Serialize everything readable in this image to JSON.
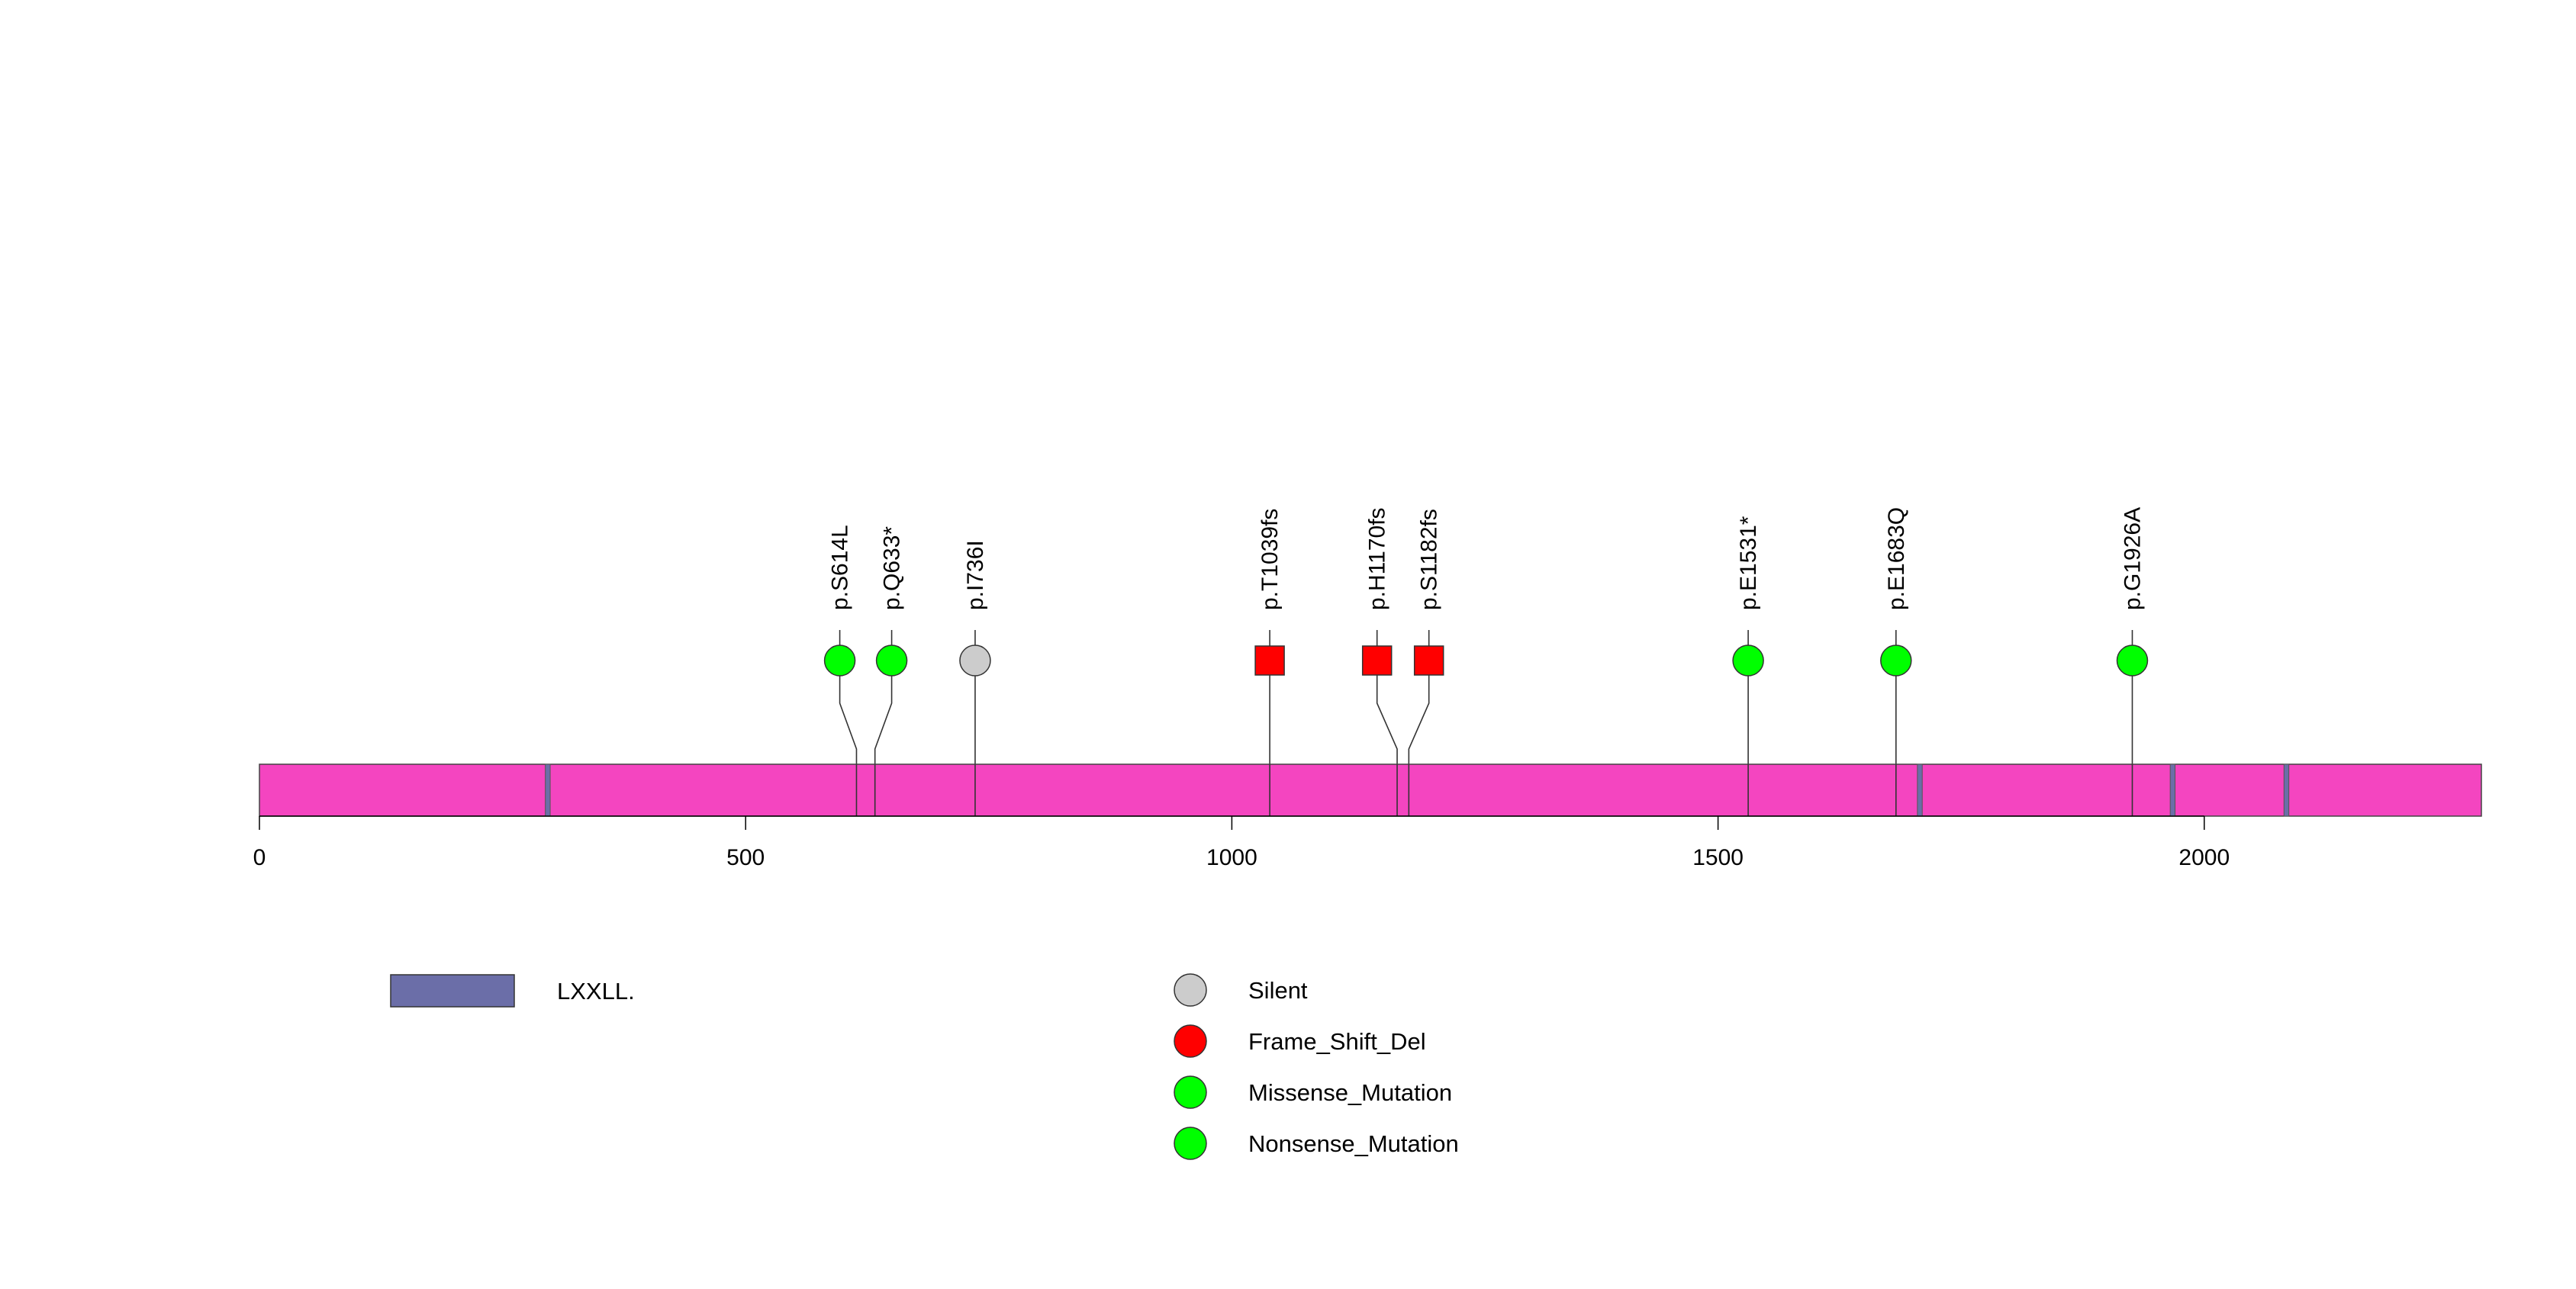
{
  "chart_data": {
    "type": "lollipop",
    "xlim": [
      0,
      2285
    ],
    "protein_length": 2285,
    "x_ticks": [
      0,
      500,
      1000,
      1500,
      2000
    ],
    "bar_color": "#f445c0",
    "domains": [
      {
        "name": "LXXLL.",
        "color": "#6b6ea8",
        "start": 294,
        "end": 299
      },
      {
        "name": "LXXLL.",
        "color": "#6b6ea8",
        "start": 1705,
        "end": 1710
      },
      {
        "name": "LXXLL.",
        "color": "#6b6ea8",
        "start": 1965,
        "end": 1970
      },
      {
        "name": "LXXLL.",
        "color": "#6b6ea8",
        "start": 2082,
        "end": 2087
      }
    ],
    "mutations": [
      {
        "label": "p.S614L",
        "position": 614,
        "type": "Missense_Mutation"
      },
      {
        "label": "p.Q633*",
        "position": 633,
        "type": "Nonsense_Mutation"
      },
      {
        "label": "p.I736I",
        "position": 736,
        "type": "Silent"
      },
      {
        "label": "p.T1039fs",
        "position": 1039,
        "type": "Frame_Shift_Del"
      },
      {
        "label": "p.H1170fs",
        "position": 1170,
        "type": "Frame_Shift_Del"
      },
      {
        "label": "p.S1182fs",
        "position": 1182,
        "type": "Frame_Shift_Del"
      },
      {
        "label": "p.E1531*",
        "position": 1531,
        "type": "Nonsense_Mutation"
      },
      {
        "label": "p.E1683Q",
        "position": 1683,
        "type": "Missense_Mutation"
      },
      {
        "label": "p.G1926A",
        "position": 1926,
        "type": "Missense_Mutation"
      }
    ],
    "mutation_types": [
      {
        "name": "Silent",
        "color": "#cccccc",
        "shape": "circle"
      },
      {
        "name": "Frame_Shift_Del",
        "color": "#ff0000",
        "shape": "square"
      },
      {
        "name": "Missense_Mutation",
        "color": "#00ff00",
        "shape": "circle"
      },
      {
        "name": "Nonsense_Mutation",
        "color": "#00ff00",
        "shape": "circle"
      }
    ],
    "domain_legend": [
      {
        "name": "LXXLL.",
        "color": "#6b6ea8"
      }
    ]
  }
}
